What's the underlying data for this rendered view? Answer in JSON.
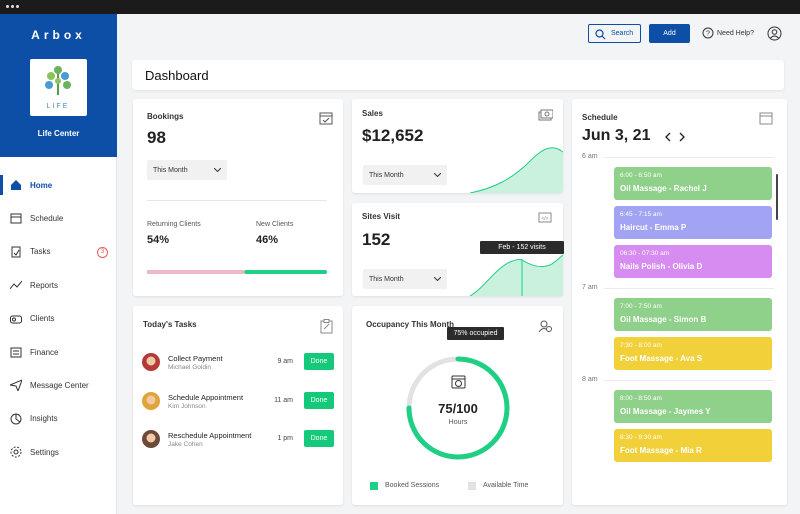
{
  "brand": "Arbox",
  "logo_text": "LIFE",
  "organization": "Life Center",
  "nav": [
    {
      "label": "Home",
      "active": true
    },
    {
      "label": "Schedule"
    },
    {
      "label": "Tasks",
      "badge": "3"
    },
    {
      "label": "Reports"
    },
    {
      "label": "Clients"
    },
    {
      "label": "Finance"
    },
    {
      "label": "Message Center"
    },
    {
      "label": "Insights"
    },
    {
      "label": "Settings"
    }
  ],
  "header": {
    "search": "Search",
    "add": "Add",
    "help": "Need Help?"
  },
  "page_title": "Dashboard",
  "bookings": {
    "title": "Bookings",
    "value": "98",
    "period": "This Month",
    "returning": {
      "label": "Returning Clients",
      "value": 54,
      "value_label": "54%",
      "color": "#f0b8c4"
    },
    "new": {
      "label": "New Clients",
      "value": 46,
      "value_label": "46%",
      "color": "#1fcf84"
    }
  },
  "sales": {
    "title": "Sales",
    "value": "$12,652",
    "period": "This Month"
  },
  "sites_visit": {
    "title": "Sites Visit",
    "value": "152",
    "period": "This Month",
    "tooltip": "Feb - 152 visits"
  },
  "occupancy": {
    "title": "Occupancy This Month",
    "tooltip": "75% occupied",
    "booked": 75,
    "total": 100,
    "center_label": "75/100",
    "unit": "Hours",
    "legend": [
      {
        "name": "Booked Sessions",
        "color": "#1fcf84"
      },
      {
        "name": "Available Time",
        "color": "#e2e2e2"
      }
    ]
  },
  "tasks": {
    "title": "Today's Tasks",
    "items": [
      {
        "title": "Collect Payment",
        "person": "Michael Goldin",
        "time": "9 am",
        "action": "Done"
      },
      {
        "title": "Schedule Appointment",
        "person": "Kim Johnson",
        "time": "11 am",
        "action": "Done"
      },
      {
        "title": "Reschedule Appointment",
        "person": "Jake Cohen",
        "time": "1 pm",
        "action": "Done"
      }
    ]
  },
  "schedule": {
    "title": "Schedule",
    "date": "Jun 3, 21",
    "hours": [
      "6 am",
      "7 am",
      "8 am"
    ],
    "events": [
      {
        "time": "6:00 - 6:50 am",
        "title": "Oil Massage - Rachel J",
        "color": "#8fd18a"
      },
      {
        "time": "6:45 - 7:15 am",
        "title": "Haircut - Emma P",
        "color": "#a3a3f3"
      },
      {
        "time": "06:30 - 07:30 am",
        "title": "Nails Polish - Olivia D",
        "color": "#d68cf0"
      },
      {
        "time": "7:00 - 7:50 am",
        "title": "Oil Massage - Simon B",
        "color": "#8fd18a"
      },
      {
        "time": "7:30 - 8:00 am",
        "title": "Foot Massage - Ava S",
        "color": "#f2d03a"
      },
      {
        "time": "8:00 - 8:50 am",
        "title": "Oil Massage - Jaymes Y",
        "color": "#8fd18a"
      },
      {
        "time": "8:30 - 9:30 am",
        "title": "Foot Massage - Mia R",
        "color": "#f2d03a"
      }
    ]
  }
}
